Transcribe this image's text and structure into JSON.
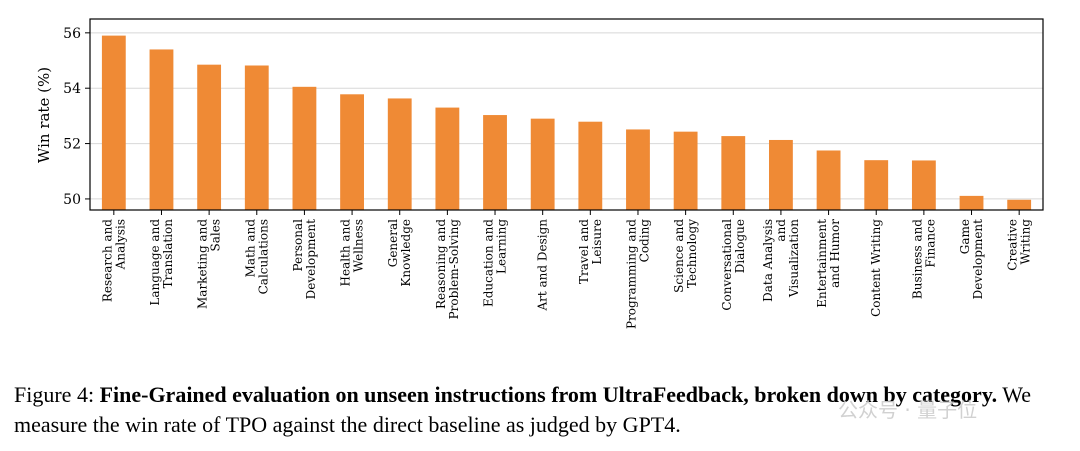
{
  "chart_data": {
    "type": "bar",
    "ylabel": "Win rate (%)",
    "ylim": [
      49.6,
      56.5
    ],
    "yticks": [
      "50",
      "52",
      "54",
      "56"
    ],
    "ytick_values": [
      50,
      52,
      54,
      56
    ],
    "grid": true,
    "bar_color": "#ef8a35",
    "categories": [
      [
        "Research and",
        "Analysis"
      ],
      [
        "Language and",
        "Translation"
      ],
      [
        "Marketing and",
        "Sales"
      ],
      [
        "Math and",
        "Calculations"
      ],
      [
        "Personal",
        "Development"
      ],
      [
        "Health and",
        "Wellness"
      ],
      [
        "General",
        "Knowledge"
      ],
      [
        "Reasoning and",
        "Problem-Solving"
      ],
      [
        "Education and",
        "Learning"
      ],
      [
        "Art and Design"
      ],
      [
        "Travel and",
        "Leisure"
      ],
      [
        "Programming and",
        "Coding"
      ],
      [
        "Science and",
        "Technology"
      ],
      [
        "Conversational",
        "Dialogue"
      ],
      [
        "Data Analysis",
        "and",
        "Visualization"
      ],
      [
        "Entertainment",
        "and Humor"
      ],
      [
        "Content Writing"
      ],
      [
        "Business and",
        "Finance"
      ],
      [
        "Game",
        "Development"
      ],
      [
        "Creative",
        "Writing"
      ]
    ],
    "values": [
      55.9,
      55.4,
      54.85,
      54.82,
      54.05,
      53.78,
      53.63,
      53.3,
      53.03,
      52.9,
      52.79,
      52.51,
      52.43,
      52.27,
      52.13,
      51.75,
      51.4,
      51.39,
      50.11,
      49.97
    ]
  },
  "caption": {
    "label": "Figure 4:",
    "bold": "Fine-Grained evaluation on unseen instructions from UltraFeedback, broken down by category.",
    "rest": "We measure the win rate of TPO against the direct baseline as judged by GPT4."
  },
  "watermark": "公众号 · 量子位"
}
